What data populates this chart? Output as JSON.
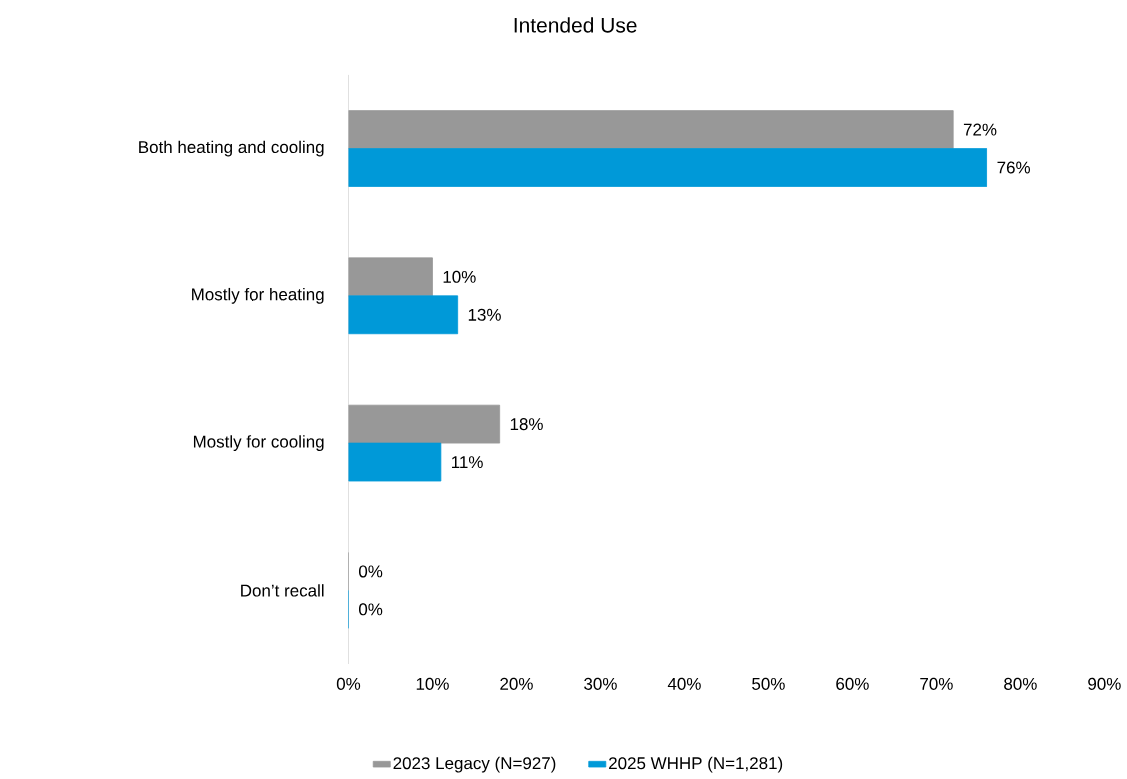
{
  "chart_data": {
    "type": "bar",
    "orientation": "horizontal",
    "title": "Intended Use",
    "categories": [
      "Both heating and cooling",
      "Mostly for heating",
      "Mostly for cooling",
      "Don’t recall"
    ],
    "series": [
      {
        "name": "2023 Legacy (N=927)",
        "color": "#989898",
        "values": [
          72,
          10,
          18,
          0
        ],
        "value_labels": [
          "72%",
          "10%",
          "18%",
          "0%"
        ]
      },
      {
        "name": "2025 WHHP (N=1,281)",
        "color": "#0099d8",
        "values": [
          76,
          13,
          11,
          0
        ],
        "value_labels": [
          "76%",
          "13%",
          "11%",
          "0%"
        ]
      }
    ],
    "xlim": [
      0,
      90
    ],
    "xticks": [
      {
        "value": 0,
        "label": "0%"
      },
      {
        "value": 10,
        "label": "10%"
      },
      {
        "value": 20,
        "label": "20%"
      },
      {
        "value": 30,
        "label": "30%"
      },
      {
        "value": 40,
        "label": "40%"
      },
      {
        "value": 50,
        "label": "50%"
      },
      {
        "value": 60,
        "label": "60%"
      },
      {
        "value": 70,
        "label": "70%"
      },
      {
        "value": 80,
        "label": "80%"
      },
      {
        "value": 90,
        "label": "90%"
      }
    ],
    "legend": "bottom"
  }
}
